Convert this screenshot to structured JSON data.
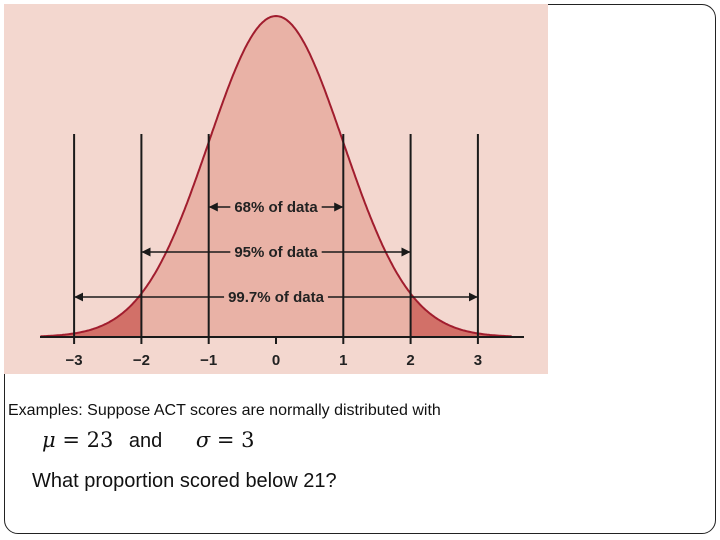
{
  "figure": {
    "background_color": "#f3d7cf",
    "curve_color": "#a11d2e",
    "fill_inner_color": "#e9b2a6",
    "fill_tail_color": "#d27068",
    "ticks": [
      "−3",
      "−2",
      "−1",
      "0",
      "1",
      "2",
      "3"
    ],
    "bands": [
      {
        "label": "68% of data",
        "from": -1,
        "to": 1
      },
      {
        "label": "95% of data",
        "from": -2,
        "to": 2
      },
      {
        "label": "99.7% of data",
        "from": -3,
        "to": 3
      }
    ]
  },
  "text": {
    "example": "Examples: Suppose ACT scores are normally distributed with",
    "mu_symbol": "μ",
    "mu_value": "= 23",
    "and_word": "and",
    "sigma_symbol": "σ",
    "sigma_value": "= 3",
    "question": "What proportion scored below 21?"
  }
}
